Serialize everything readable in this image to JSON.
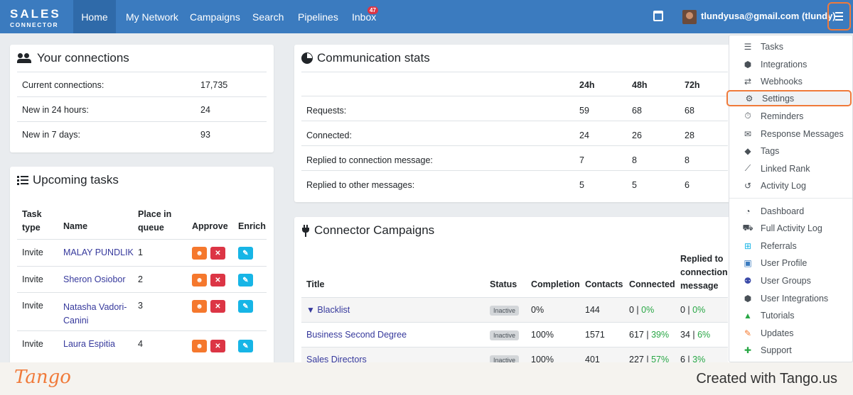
{
  "nav": {
    "logo_line1": "SALES",
    "logo_line2": "CONNECTOR",
    "items": [
      "Home",
      "My Network",
      "Campaigns",
      "Search",
      "Pipelines",
      "Inbox"
    ],
    "inbox_badge": "47",
    "user": "tlundyusa@gmail.com (tlundy)"
  },
  "connections": {
    "title": "Your connections",
    "rows": [
      {
        "label": "Current connections:",
        "value": "17,735"
      },
      {
        "label": "New in 24 hours:",
        "value": "24"
      },
      {
        "label": "New in 7 days:",
        "value": "93"
      }
    ]
  },
  "tasks": {
    "title": "Upcoming tasks",
    "headers": [
      "Task type",
      "Name",
      "Place in queue",
      "Approve",
      "Enrich"
    ],
    "rows": [
      {
        "type": "Invite",
        "name": "MALAY PUNDLIK",
        "place": "1"
      },
      {
        "type": "Invite",
        "name": "Sheron Osiobor",
        "place": "2"
      },
      {
        "type": "Invite",
        "name": "Natasha Vadori-Canini",
        "place": "3"
      },
      {
        "type": "Invite",
        "name": "Laura Espitia",
        "place": "4"
      }
    ]
  },
  "stats": {
    "title": "Communication stats",
    "headers": [
      "24h",
      "48h",
      "72h"
    ],
    "rows": [
      {
        "label": "Requests:",
        "v": [
          "59",
          "68",
          "68"
        ]
      },
      {
        "label": "Connected:",
        "v": [
          "24",
          "26",
          "28"
        ]
      },
      {
        "label": "Replied to connection message:",
        "v": [
          "7",
          "8",
          "8"
        ]
      },
      {
        "label": "Replied to other messages:",
        "v": [
          "5",
          "5",
          "6"
        ]
      }
    ]
  },
  "campaigns": {
    "title": "Connector Campaigns",
    "headers": [
      "Title",
      "Status",
      "Completion",
      "Contacts",
      "Connected",
      "Replied to connection message"
    ],
    "rows": [
      {
        "title": "Blacklist",
        "status": "Inactive",
        "completion": "0%",
        "contacts": "144",
        "connected": "0",
        "connected_pct": "0%",
        "replied": "0",
        "replied_pct": "0%"
      },
      {
        "title": "Business Second Degree",
        "status": "Inactive",
        "completion": "100%",
        "contacts": "1571",
        "connected": "617",
        "connected_pct": "39%",
        "replied": "34",
        "replied_pct": "6%"
      },
      {
        "title": "Sales Directors",
        "status": "Inactive",
        "completion": "100%",
        "contacts": "401",
        "connected": "227",
        "connected_pct": "57%",
        "replied": "6",
        "replied_pct": "3%"
      }
    ]
  },
  "menu": {
    "group1": [
      "Tasks",
      "Integrations",
      "Webhooks",
      "Settings",
      "Reminders",
      "Response Messages",
      "Tags",
      "Linked Rank",
      "Activity Log"
    ],
    "group2": [
      "Dashboard",
      "Full Activity Log",
      "Referrals",
      "User Profile",
      "User Groups",
      "User Integrations",
      "Tutorials",
      "Updates",
      "Support"
    ]
  },
  "footer": {
    "logo": "Tango",
    "text": "Created with Tango.us"
  },
  "colors": {
    "navbar": "#3b7bbf",
    "highlight": "#f07a3a",
    "link": "#36399c",
    "green": "#28a745"
  }
}
